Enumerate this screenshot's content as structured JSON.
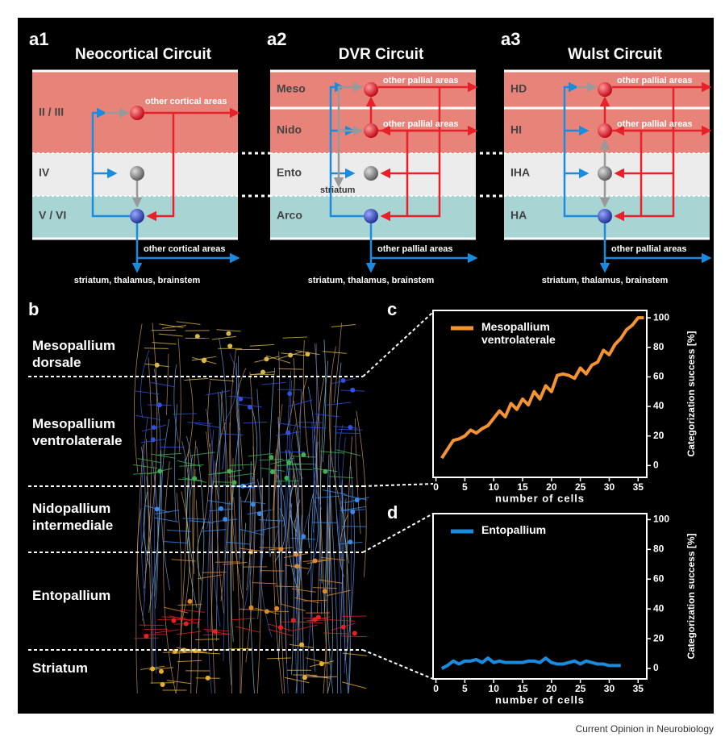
{
  "panel_a": [
    {
      "label": "a1",
      "title": "Neocortical Circuit",
      "layers": [
        "II / III",
        "IV",
        "V / VI"
      ],
      "arrow_labels": [
        "other cortical areas",
        "other cortical areas"
      ],
      "output": "striatum, thalamus, brainstem"
    },
    {
      "label": "a2",
      "title": "DVR Circuit",
      "layers": [
        "Meso",
        "Nido",
        "Ento",
        "Arco"
      ],
      "arrow_labels": [
        "other pallial areas",
        "other pallial areas",
        "other pallial areas"
      ],
      "striatum": "striatum",
      "output": "striatum, thalamus, brainstem"
    },
    {
      "label": "a3",
      "title": "Wulst Circuit",
      "layers": [
        "HD",
        "HI",
        "IHA",
        "HA"
      ],
      "arrow_labels": [
        "other pallial areas",
        "other pallial areas",
        "other pallial areas"
      ],
      "output": "striatum, thalamus, brainstem"
    }
  ],
  "panel_b": {
    "label": "b",
    "layers": [
      "Mesopallium dorsale",
      "Mesopallium ventrolaterale",
      "Nidopallium intermediale",
      "Entopallium",
      "Striatum"
    ]
  },
  "chart_data": [
    {
      "type": "line",
      "panel_label": "c",
      "xlabel": "number of cells",
      "ylabel": "Categorization success [%]",
      "x": [
        1,
        2,
        3,
        4,
        5,
        6,
        7,
        8,
        9,
        10,
        11,
        12,
        13,
        14,
        15,
        16,
        17,
        18,
        19,
        20,
        21,
        22,
        23,
        24,
        25,
        26,
        27,
        28,
        29,
        30,
        31,
        32,
        33,
        34,
        35,
        36
      ],
      "series": [
        {
          "name": "Mesopallium ventrolaterale",
          "color": "#f39332",
          "values": [
            5,
            11,
            17,
            18,
            20,
            24,
            22,
            25,
            27,
            32,
            37,
            33,
            42,
            38,
            45,
            41,
            50,
            45,
            54,
            50,
            61,
            62,
            61,
            59,
            66,
            62,
            68,
            70,
            78,
            75,
            82,
            86,
            92,
            95,
            100,
            100
          ]
        }
      ],
      "xlim": [
        -0.5,
        36.5
      ],
      "xticks": [
        0,
        5,
        10,
        15,
        20,
        25,
        30,
        35
      ],
      "ylim": [
        -8,
        105
      ],
      "yticks": [
        0,
        20,
        40,
        60,
        80,
        100
      ]
    },
    {
      "type": "line",
      "panel_label": "d",
      "xlabel": "number of cells",
      "ylabel": "Categorization success [%]",
      "x": [
        1,
        2,
        3,
        4,
        5,
        6,
        7,
        8,
        9,
        10,
        11,
        12,
        13,
        14,
        15,
        16,
        17,
        18,
        19,
        20,
        21,
        22,
        23,
        24,
        25,
        26,
        27,
        28,
        29,
        30,
        31,
        32
      ],
      "series": [
        {
          "name": "Entopallium",
          "color": "#1a8ce0",
          "values": [
            0,
            2,
            5,
            3,
            5,
            5,
            6,
            4,
            7,
            4,
            5,
            4,
            4,
            4,
            4,
            5,
            5,
            4,
            7,
            4,
            3,
            3,
            4,
            5,
            3,
            5,
            4,
            3,
            3,
            2,
            2,
            2
          ]
        }
      ],
      "xlim": [
        -0.5,
        36.5
      ],
      "xticks": [
        0,
        5,
        10,
        15,
        20,
        25,
        30,
        35
      ],
      "ylim": [
        -7,
        104
      ],
      "yticks": [
        0,
        20,
        40,
        60,
        80,
        100
      ]
    }
  ],
  "credit": "Current Opinion in Neurobiology"
}
